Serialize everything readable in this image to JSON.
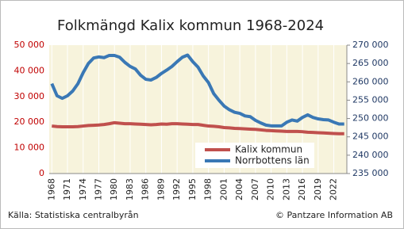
{
  "chart_data": {
    "type": "line",
    "title": "Folkmängd Kalix kommun 1968-2024",
    "source": "Källa: Statistiska centralbyrån",
    "credit": "© Pantzare Information AB",
    "x": [
      1968,
      1969,
      1970,
      1971,
      1972,
      1973,
      1974,
      1975,
      1976,
      1977,
      1978,
      1979,
      1980,
      1981,
      1982,
      1983,
      1984,
      1985,
      1986,
      1987,
      1988,
      1989,
      1990,
      1991,
      1992,
      1993,
      1994,
      1995,
      1996,
      1997,
      1998,
      1999,
      2000,
      2001,
      2002,
      2003,
      2004,
      2005,
      2006,
      2007,
      2008,
      2009,
      2010,
      2011,
      2012,
      2013,
      2014,
      2015,
      2016,
      2017,
      2018,
      2019,
      2020,
      2021,
      2022,
      2023,
      2024
    ],
    "xlim": [
      1967.5,
      2024.5
    ],
    "xticks": [
      1968,
      1971,
      1974,
      1977,
      1980,
      1983,
      1986,
      1989,
      1992,
      1995,
      1998,
      2001,
      2004,
      2007,
      2010,
      2013,
      2016,
      2019,
      2022
    ],
    "ylim": [
      0,
      50000
    ],
    "yticks": [
      0,
      {
        "value": 10000,
        "label": "10 000"
      },
      {
        "value": 20000,
        "label": "20 000"
      },
      {
        "value": 30000,
        "label": "30 000"
      },
      {
        "value": 40000,
        "label": "40 000"
      },
      {
        "value": 50000,
        "label": "50 000"
      }
    ],
    "y2lim": [
      235000,
      270000
    ],
    "y2ticks": [
      {
        "value": 235000,
        "label": "235 000"
      },
      {
        "value": 240000,
        "label": "240 000"
      },
      {
        "value": 245000,
        "label": "245 000"
      },
      {
        "value": 250000,
        "label": "250 000"
      },
      {
        "value": 255000,
        "label": "255 000"
      },
      {
        "value": 260000,
        "label": "260 000"
      },
      {
        "value": 265000,
        "label": "265 000"
      },
      {
        "value": 270000,
        "label": "270 000"
      }
    ],
    "grid": true,
    "series": [
      {
        "name": "Kalix kommun",
        "color": "#c0504d",
        "values": [
          18500,
          18300,
          18200,
          18200,
          18200,
          18300,
          18500,
          18700,
          18800,
          18900,
          19100,
          19400,
          19800,
          19600,
          19400,
          19400,
          19300,
          19200,
          19100,
          19000,
          19100,
          19300,
          19200,
          19400,
          19400,
          19300,
          19200,
          19100,
          19100,
          18800,
          18500,
          18400,
          18200,
          17900,
          17800,
          17600,
          17500,
          17400,
          17300,
          17200,
          17000,
          16800,
          16700,
          16600,
          16500,
          16400,
          16400,
          16400,
          16300,
          16100,
          16000,
          15900,
          15800,
          15700,
          15600,
          15500,
          15500
        ]
      },
      {
        "name": "Norrbottens län",
        "color": "#3a78b5",
        "axis": "y2",
        "values": [
          259500,
          256200,
          255500,
          256200,
          257500,
          259500,
          262500,
          265000,
          266500,
          266800,
          266600,
          267200,
          267200,
          266700,
          265300,
          264200,
          263500,
          261800,
          260700,
          260500,
          261200,
          262300,
          263200,
          264200,
          265500,
          266700,
          267300,
          265500,
          264000,
          261600,
          259800,
          256800,
          255000,
          253400,
          252400,
          251700,
          251400,
          250700,
          250500,
          249500,
          248800,
          248200,
          248000,
          248000,
          248000,
          249000,
          249600,
          249300,
          250300,
          251000,
          250300,
          249900,
          249700,
          249600,
          249000,
          248500,
          248500
        ]
      }
    ]
  }
}
